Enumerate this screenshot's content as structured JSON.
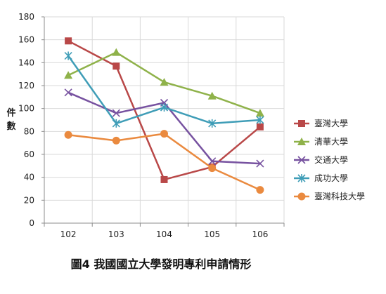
{
  "chart_data": {
    "type": "line",
    "title": "",
    "caption": "圖4 我國國立大學發明專利申請情形",
    "xlabel": "",
    "ylabel": "件數",
    "ylim": [
      0,
      180
    ],
    "yticks": [
      0,
      20,
      40,
      60,
      80,
      100,
      120,
      140,
      160,
      180
    ],
    "categories": [
      "102",
      "103",
      "104",
      "105",
      "106"
    ],
    "grid": true,
    "legend_position": "right",
    "series": [
      {
        "name": "臺灣大學",
        "values": [
          159,
          137,
          38,
          49,
          84
        ],
        "color": "#b94848",
        "marker": "square"
      },
      {
        "name": "清華大學",
        "values": [
          129,
          149,
          123,
          111,
          96
        ],
        "color": "#8fb24a",
        "marker": "triangle"
      },
      {
        "name": "交通大學",
        "values": [
          114,
          96,
          105,
          54,
          52
        ],
        "color": "#7752a0",
        "marker": "x"
      },
      {
        "name": "成功大學",
        "values": [
          146,
          87,
          101,
          87,
          90
        ],
        "color": "#3f9db7",
        "marker": "star"
      },
      {
        "name": "臺灣科技大學",
        "values": [
          77,
          72,
          78,
          48,
          29
        ],
        "color": "#ea8a3f",
        "marker": "circle"
      }
    ]
  }
}
